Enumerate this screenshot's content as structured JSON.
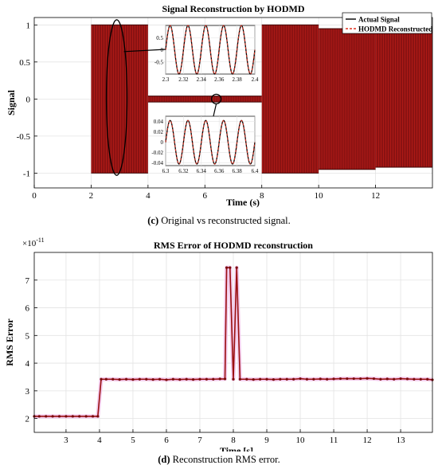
{
  "chart_data": [
    {
      "type": "line",
      "title": "Signal Reconstruction by HODMD",
      "xlabel": "Time (s)",
      "ylabel": "Signal",
      "xlim": [
        0,
        14
      ],
      "ylim": [
        -1.2,
        1.1
      ],
      "x_ticks": [
        0,
        2,
        4,
        6,
        8,
        10,
        12
      ],
      "y_ticks": [
        -1,
        -0.5,
        0,
        0.5,
        1
      ],
      "y_tick_labels": [
        "-1",
        "-0.5",
        "0",
        "0.5",
        "1"
      ],
      "grid": true,
      "legend_position": "top-right",
      "series": [
        {
          "name": "Actual Signal",
          "color": "#000000",
          "style": "solid"
        },
        {
          "name": "HODMD Reconstructed",
          "color": "#e0301e",
          "style": "dashed"
        }
      ],
      "segments": [
        {
          "t0": 2,
          "t1": 4,
          "amplitude": 1.0
        },
        {
          "t0": 4,
          "t1": 8,
          "amplitude": 0.04
        },
        {
          "t0": 8,
          "t1": 10,
          "amplitude": 1.0
        },
        {
          "t0": 10,
          "t1": 12,
          "amplitude": 0.95
        },
        {
          "t0": 12,
          "t1": 14,
          "amplitude": 0.92
        }
      ],
      "insets": [
        {
          "xlim": [
            2.3,
            2.4
          ],
          "ylim": [
            -1,
            1
          ],
          "x_ticks": [
            2.3,
            2.32,
            2.34,
            2.36,
            2.38,
            2.4
          ],
          "y_ticks": [
            -0.5,
            0,
            0.5
          ],
          "cycles": 5,
          "amplitude": 1.0
        },
        {
          "xlim": [
            6.3,
            6.4
          ],
          "ylim": [
            -0.045,
            0.05
          ],
          "x_ticks": [
            6.3,
            6.32,
            6.34,
            6.36,
            6.38,
            6.4
          ],
          "y_ticks": [
            -0.04,
            -0.02,
            0,
            0.02,
            0.04
          ],
          "cycles": 5,
          "amplitude": 0.042
        }
      ]
    },
    {
      "type": "line",
      "title": "RMS Error of HODMD reconstruction",
      "xlabel": "Time [s]",
      "ylabel": "RMS Error",
      "scale_factor": "×10",
      "scale_exponent": "-11",
      "xlim": [
        2.05,
        13.95
      ],
      "ylim": [
        1.5,
        8
      ],
      "x_ticks": [
        3,
        4,
        5,
        6,
        7,
        8,
        9,
        10,
        11,
        12,
        13
      ],
      "y_ticks": [
        2,
        3,
        4,
        5,
        6,
        7
      ],
      "grid": true,
      "x": [
        2.05,
        2.2,
        2.4,
        2.6,
        2.8,
        3.0,
        3.2,
        3.4,
        3.6,
        3.8,
        3.95,
        4.05,
        4.2,
        4.4,
        4.6,
        4.8,
        5.0,
        5.2,
        5.4,
        5.6,
        5.8,
        6.0,
        6.2,
        6.4,
        6.6,
        6.8,
        7.0,
        7.2,
        7.4,
        7.6,
        7.75,
        7.8,
        7.9,
        8.0,
        8.1,
        8.2,
        8.4,
        8.6,
        8.8,
        9.0,
        9.2,
        9.4,
        9.6,
        9.8,
        10.0,
        10.2,
        10.4,
        10.6,
        10.8,
        11.0,
        11.2,
        11.4,
        11.6,
        11.8,
        12.0,
        12.2,
        12.4,
        12.6,
        12.8,
        13.0,
        13.2,
        13.4,
        13.6,
        13.8,
        13.95
      ],
      "y": [
        2.08,
        2.08,
        2.08,
        2.08,
        2.08,
        2.08,
        2.08,
        2.08,
        2.08,
        2.08,
        2.08,
        3.42,
        3.42,
        3.42,
        3.41,
        3.42,
        3.41,
        3.42,
        3.42,
        3.41,
        3.42,
        3.4,
        3.42,
        3.41,
        3.42,
        3.41,
        3.42,
        3.42,
        3.42,
        3.43,
        3.43,
        7.45,
        7.45,
        3.42,
        7.45,
        3.42,
        3.42,
        3.41,
        3.42,
        3.42,
        3.41,
        3.42,
        3.42,
        3.42,
        3.44,
        3.42,
        3.42,
        3.43,
        3.42,
        3.43,
        3.44,
        3.44,
        3.44,
        3.44,
        3.45,
        3.44,
        3.42,
        3.43,
        3.42,
        3.44,
        3.43,
        3.42,
        3.42,
        3.42,
        3.4
      ]
    }
  ],
  "captions": {
    "top_letter": "(c)",
    "top_text": "Original vs reconstructed signal.",
    "bottom_letter": "(d)",
    "bottom_text": "Reconstruction RMS error."
  }
}
